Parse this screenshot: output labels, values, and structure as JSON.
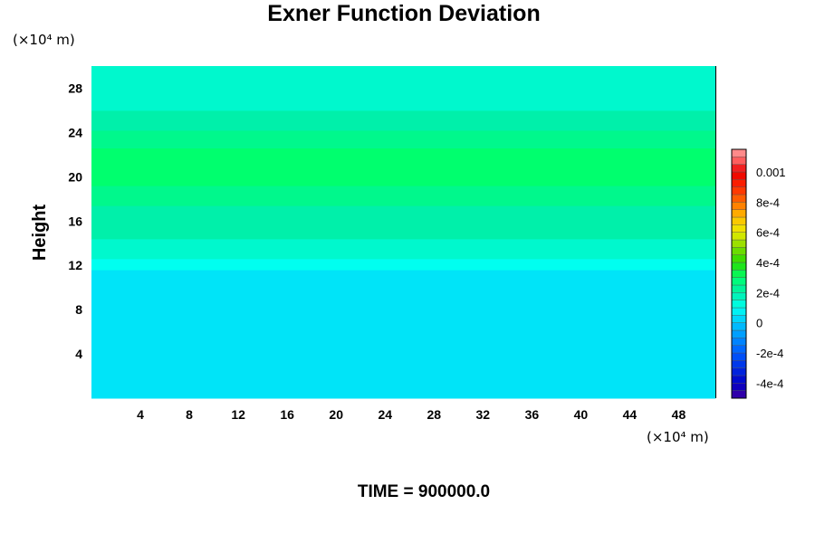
{
  "chart_data": {
    "type": "heatmap",
    "title": "Exner Function Deviation",
    "ylabel": "Height",
    "xlabel": "",
    "x_unit": "(×10⁴ m)",
    "y_unit": "(×10⁴ m)",
    "xlim": [
      0,
      51
    ],
    "ylim": [
      0,
      30
    ],
    "x_ticks": [
      "4",
      "8",
      "12",
      "16",
      "20",
      "24",
      "28",
      "32",
      "36",
      "40",
      "44",
      "48"
    ],
    "y_ticks": [
      "4",
      "8",
      "12",
      "16",
      "20",
      "24",
      "28"
    ],
    "colorbar": {
      "range": [
        -0.0005,
        0.00115
      ],
      "tick_values": [
        0.001,
        0.0008,
        0.0006,
        0.0004,
        0.0002,
        0,
        -0.0002,
        -0.0004
      ],
      "tick_labels": [
        "0.001",
        "8e-4",
        "6e-4",
        "4e-4",
        "2e-4",
        "0",
        "-2e-4",
        "-4e-4"
      ]
    },
    "layers": [
      {
        "y_range": [
          0,
          11.6
        ],
        "value": 5e-05
      },
      {
        "y_range": [
          11.6,
          12.6
        ],
        "value": 0.0001
      },
      {
        "y_range": [
          12.6,
          14.4
        ],
        "value": 0.00015
      },
      {
        "y_range": [
          14.4,
          17.4
        ],
        "value": 0.0002
      },
      {
        "y_range": [
          17.4,
          19.2
        ],
        "value": 0.00025
      },
      {
        "y_range": [
          19.2,
          22.6
        ],
        "value": 0.0003
      },
      {
        "y_range": [
          22.6,
          24.2
        ],
        "value": 0.00025
      },
      {
        "y_range": [
          24.2,
          26.0
        ],
        "value": 0.0002
      },
      {
        "y_range": [
          26.0,
          30.0
        ],
        "value": 0.00015
      }
    ],
    "grid": false,
    "legend": "right"
  },
  "footer": "TIME = 900000.0"
}
